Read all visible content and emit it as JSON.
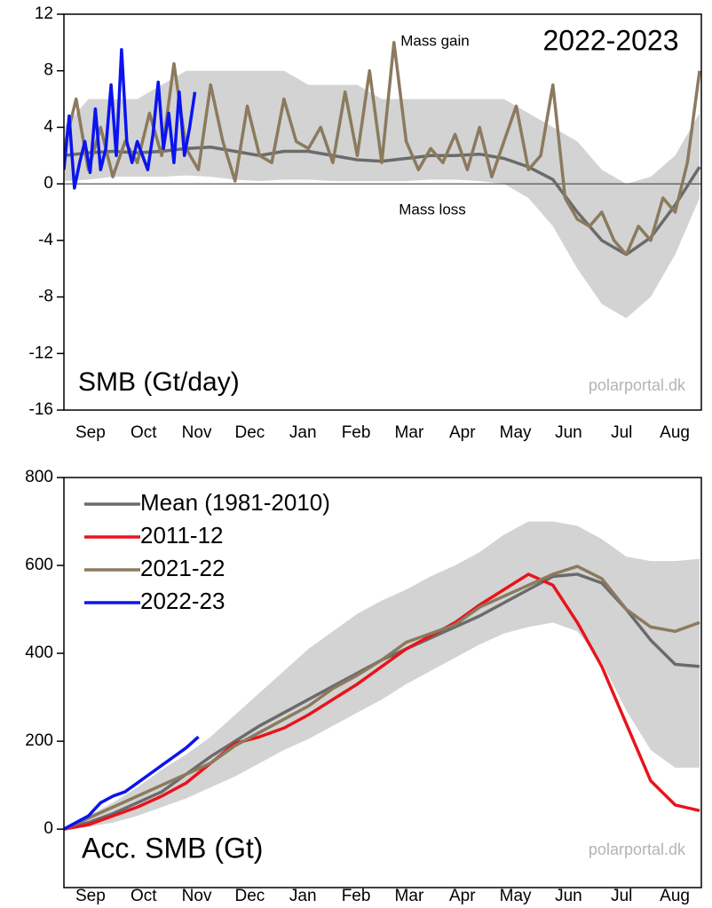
{
  "chart_data": [
    {
      "type": "line",
      "title": "2022-2023",
      "label": "SMB (Gt/day)",
      "source": "polarportal.dk",
      "annotations": [
        "Mass gain",
        "Mass loss"
      ],
      "categories": [
        "Sep",
        "Oct",
        "Nov",
        "Dec",
        "Jan",
        "Feb",
        "Mar",
        "Apr",
        "May",
        "Jun",
        "Jul",
        "Aug"
      ],
      "xlim": [
        0,
        365
      ],
      "ylim": [
        -16,
        12
      ],
      "yticks": [
        -16,
        -12,
        -8,
        -4,
        0,
        4,
        8,
        12
      ],
      "band_color": "#d3d3d3",
      "band_x": [
        0,
        14,
        28,
        42,
        56,
        70,
        84,
        98,
        112,
        126,
        140,
        154,
        168,
        182,
        196,
        210,
        224,
        238,
        252,
        266,
        280,
        294,
        308,
        322,
        336,
        350,
        364
      ],
      "band_low": [
        0.2,
        0.3,
        0.5,
        0.5,
        0.5,
        0.6,
        0.5,
        0.3,
        0.2,
        0.3,
        0.3,
        0.2,
        0.2,
        0.2,
        0.2,
        0.3,
        0.3,
        0.2,
        0,
        -1,
        -3,
        -6,
        -8.5,
        -9.5,
        -8,
        -5,
        -1
      ],
      "band_high": [
        4,
        6,
        6,
        6,
        7,
        8,
        8,
        8,
        8,
        8,
        7,
        7,
        7,
        6,
        6,
        6,
        6,
        6,
        6,
        5,
        4,
        3,
        1,
        0,
        0.5,
        2,
        5
      ],
      "series": [
        {
          "color": "#6b6b6b",
          "x": [
            0,
            14,
            28,
            42,
            56,
            70,
            84,
            98,
            112,
            126,
            140,
            154,
            168,
            182,
            196,
            210,
            224,
            238,
            252,
            266,
            280,
            294,
            308,
            322,
            336,
            350,
            364
          ],
          "values": [
            2.0,
            2.2,
            2.3,
            2.2,
            2.3,
            2.5,
            2.6,
            2.3,
            2.0,
            2.3,
            2.3,
            2.0,
            1.7,
            1.6,
            1.8,
            2.0,
            2.0,
            2.1,
            1.8,
            1.2,
            0.3,
            -2.0,
            -4.0,
            -5.0,
            -3.8,
            -1.5,
            1.2
          ]
        },
        {
          "color": "#8b7a5e",
          "x": [
            0,
            7,
            14,
            21,
            28,
            35,
            42,
            49,
            56,
            63,
            70,
            77,
            84,
            91,
            98,
            105,
            112,
            119,
            126,
            133,
            140,
            147,
            154,
            161,
            168,
            175,
            182,
            189,
            196,
            203,
            210,
            217,
            224,
            231,
            238,
            245,
            252,
            259,
            266,
            273,
            280,
            287,
            294,
            301,
            308,
            315,
            322,
            329,
            336,
            343,
            350,
            357,
            364
          ],
          "values": [
            2.5,
            6.0,
            1.0,
            4.0,
            0.5,
            3.0,
            1.5,
            5.0,
            2.0,
            8.5,
            2.5,
            1.0,
            7.0,
            3.0,
            0.2,
            5.5,
            2.0,
            1.5,
            6.0,
            3.0,
            2.5,
            4.0,
            1.5,
            6.5,
            2.0,
            8.0,
            1.5,
            10.0,
            3.0,
            1.0,
            2.5,
            1.5,
            3.5,
            1.0,
            4.0,
            0.5,
            3.0,
            5.5,
            1.0,
            2.0,
            7.0,
            -1.0,
            -2.5,
            -3.0,
            -2.0,
            -4.0,
            -5.0,
            -3.0,
            -4.0,
            -1.0,
            -2.0,
            1.5,
            8.0
          ]
        },
        {
          "color": "#0a14f0",
          "x": [
            0,
            3,
            6,
            9,
            12,
            15,
            18,
            21,
            24,
            27,
            30,
            33,
            36,
            39,
            42,
            45,
            48,
            51,
            54,
            57,
            60,
            63,
            66,
            69,
            72,
            75
          ],
          "values": [
            1,
            4.8,
            -0.3,
            1.5,
            3,
            0.8,
            5.3,
            1,
            2.5,
            7,
            2,
            9.5,
            3,
            1.5,
            3,
            2,
            1,
            3.5,
            7.2,
            2.5,
            5,
            1.5,
            6.5,
            2,
            4,
            6.5
          ]
        }
      ]
    },
    {
      "type": "line",
      "label": "Acc. SMB (Gt)",
      "source": "polarportal.dk",
      "legend": "upper left",
      "categories": [
        "Sep",
        "Oct",
        "Nov",
        "Dec",
        "Jan",
        "Feb",
        "Mar",
        "Apr",
        "May",
        "Jun",
        "Jul",
        "Aug"
      ],
      "xlim": [
        0,
        365
      ],
      "ylim": [
        -133,
        800
      ],
      "yticks": [
        0,
        200,
        400,
        600,
        800
      ],
      "band_color": "#d3d3d3",
      "band_x": [
        0,
        14,
        28,
        42,
        56,
        70,
        84,
        98,
        112,
        126,
        140,
        154,
        168,
        182,
        196,
        210,
        224,
        238,
        252,
        266,
        280,
        294,
        308,
        322,
        336,
        350,
        364
      ],
      "band_low": [
        0,
        5,
        15,
        30,
        50,
        70,
        95,
        120,
        150,
        180,
        205,
        235,
        265,
        295,
        330,
        360,
        390,
        420,
        445,
        460,
        470,
        450,
        380,
        270,
        180,
        140,
        140
      ],
      "band_high": [
        0,
        30,
        60,
        95,
        135,
        170,
        210,
        260,
        310,
        360,
        410,
        450,
        490,
        520,
        545,
        575,
        600,
        630,
        670,
        700,
        700,
        690,
        660,
        620,
        610,
        610,
        615
      ],
      "series": [
        {
          "name": "Mean (1981-2010)",
          "color": "#6b6b6b",
          "x": [
            0,
            14,
            28,
            42,
            56,
            70,
            84,
            98,
            112,
            126,
            140,
            154,
            168,
            182,
            196,
            210,
            224,
            238,
            252,
            266,
            280,
            294,
            308,
            322,
            336,
            350,
            364
          ],
          "values": [
            0,
            15,
            35,
            60,
            85,
            125,
            165,
            200,
            235,
            265,
            295,
            325,
            355,
            385,
            410,
            435,
            460,
            485,
            515,
            545,
            575,
            580,
            560,
            500,
            430,
            375,
            370
          ]
        },
        {
          "name": "2011-12",
          "color": "#e8141b",
          "x": [
            0,
            14,
            28,
            42,
            56,
            70,
            84,
            98,
            112,
            126,
            140,
            154,
            168,
            182,
            196,
            210,
            224,
            238,
            252,
            266,
            280,
            294,
            308,
            322,
            336,
            350,
            364
          ],
          "values": [
            0,
            10,
            30,
            50,
            75,
            105,
            150,
            195,
            210,
            230,
            260,
            295,
            330,
            370,
            410,
            440,
            470,
            510,
            545,
            580,
            555,
            470,
            370,
            240,
            110,
            55,
            42
          ]
        },
        {
          "name": "2021-22",
          "color": "#8b7a5e",
          "x": [
            0,
            14,
            28,
            42,
            56,
            70,
            84,
            98,
            112,
            126,
            140,
            154,
            168,
            182,
            196,
            210,
            224,
            238,
            252,
            266,
            280,
            294,
            308,
            322,
            336,
            350,
            364
          ],
          "values": [
            0,
            25,
            50,
            75,
            100,
            125,
            150,
            190,
            220,
            250,
            280,
            320,
            350,
            385,
            425,
            445,
            465,
            505,
            530,
            555,
            580,
            598,
            570,
            500,
            460,
            450,
            470
          ]
        },
        {
          "name": "2022-23",
          "color": "#0a14f0",
          "x": [
            0,
            7,
            14,
            21,
            28,
            35,
            42,
            49,
            56,
            63,
            70,
            77
          ],
          "values": [
            0,
            15,
            30,
            60,
            75,
            85,
            105,
            125,
            145,
            165,
            185,
            210
          ]
        }
      ]
    }
  ]
}
